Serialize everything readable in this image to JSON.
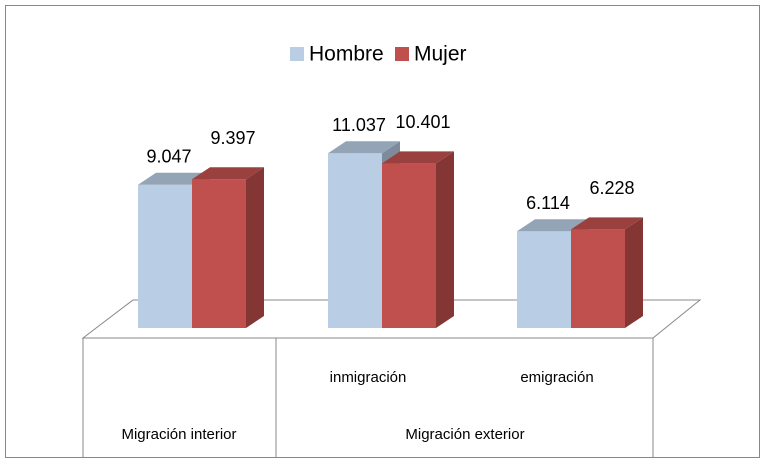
{
  "chart_data": {
    "type": "bar3d",
    "categories": [
      null,
      "inmigración",
      "emigración"
    ],
    "category_groups": [
      {
        "name": "Migración interior",
        "categories": [
          null
        ]
      },
      {
        "name": "Migración exterior",
        "categories": [
          "inmigración",
          "emigración"
        ]
      }
    ],
    "series": [
      {
        "name": "Hombre",
        "color": "#b9cde5",
        "values": [
          9047,
          11037,
          6114
        ],
        "value_labels": [
          "9.047",
          "11.037",
          "6.114"
        ]
      },
      {
        "name": "Mujer",
        "color": "#c0504d",
        "values": [
          9397,
          10401,
          6228
        ],
        "value_labels": [
          "9.397",
          "10.401",
          "6.228"
        ]
      }
    ],
    "ylim": [
      0,
      12000
    ],
    "legend": "top"
  }
}
